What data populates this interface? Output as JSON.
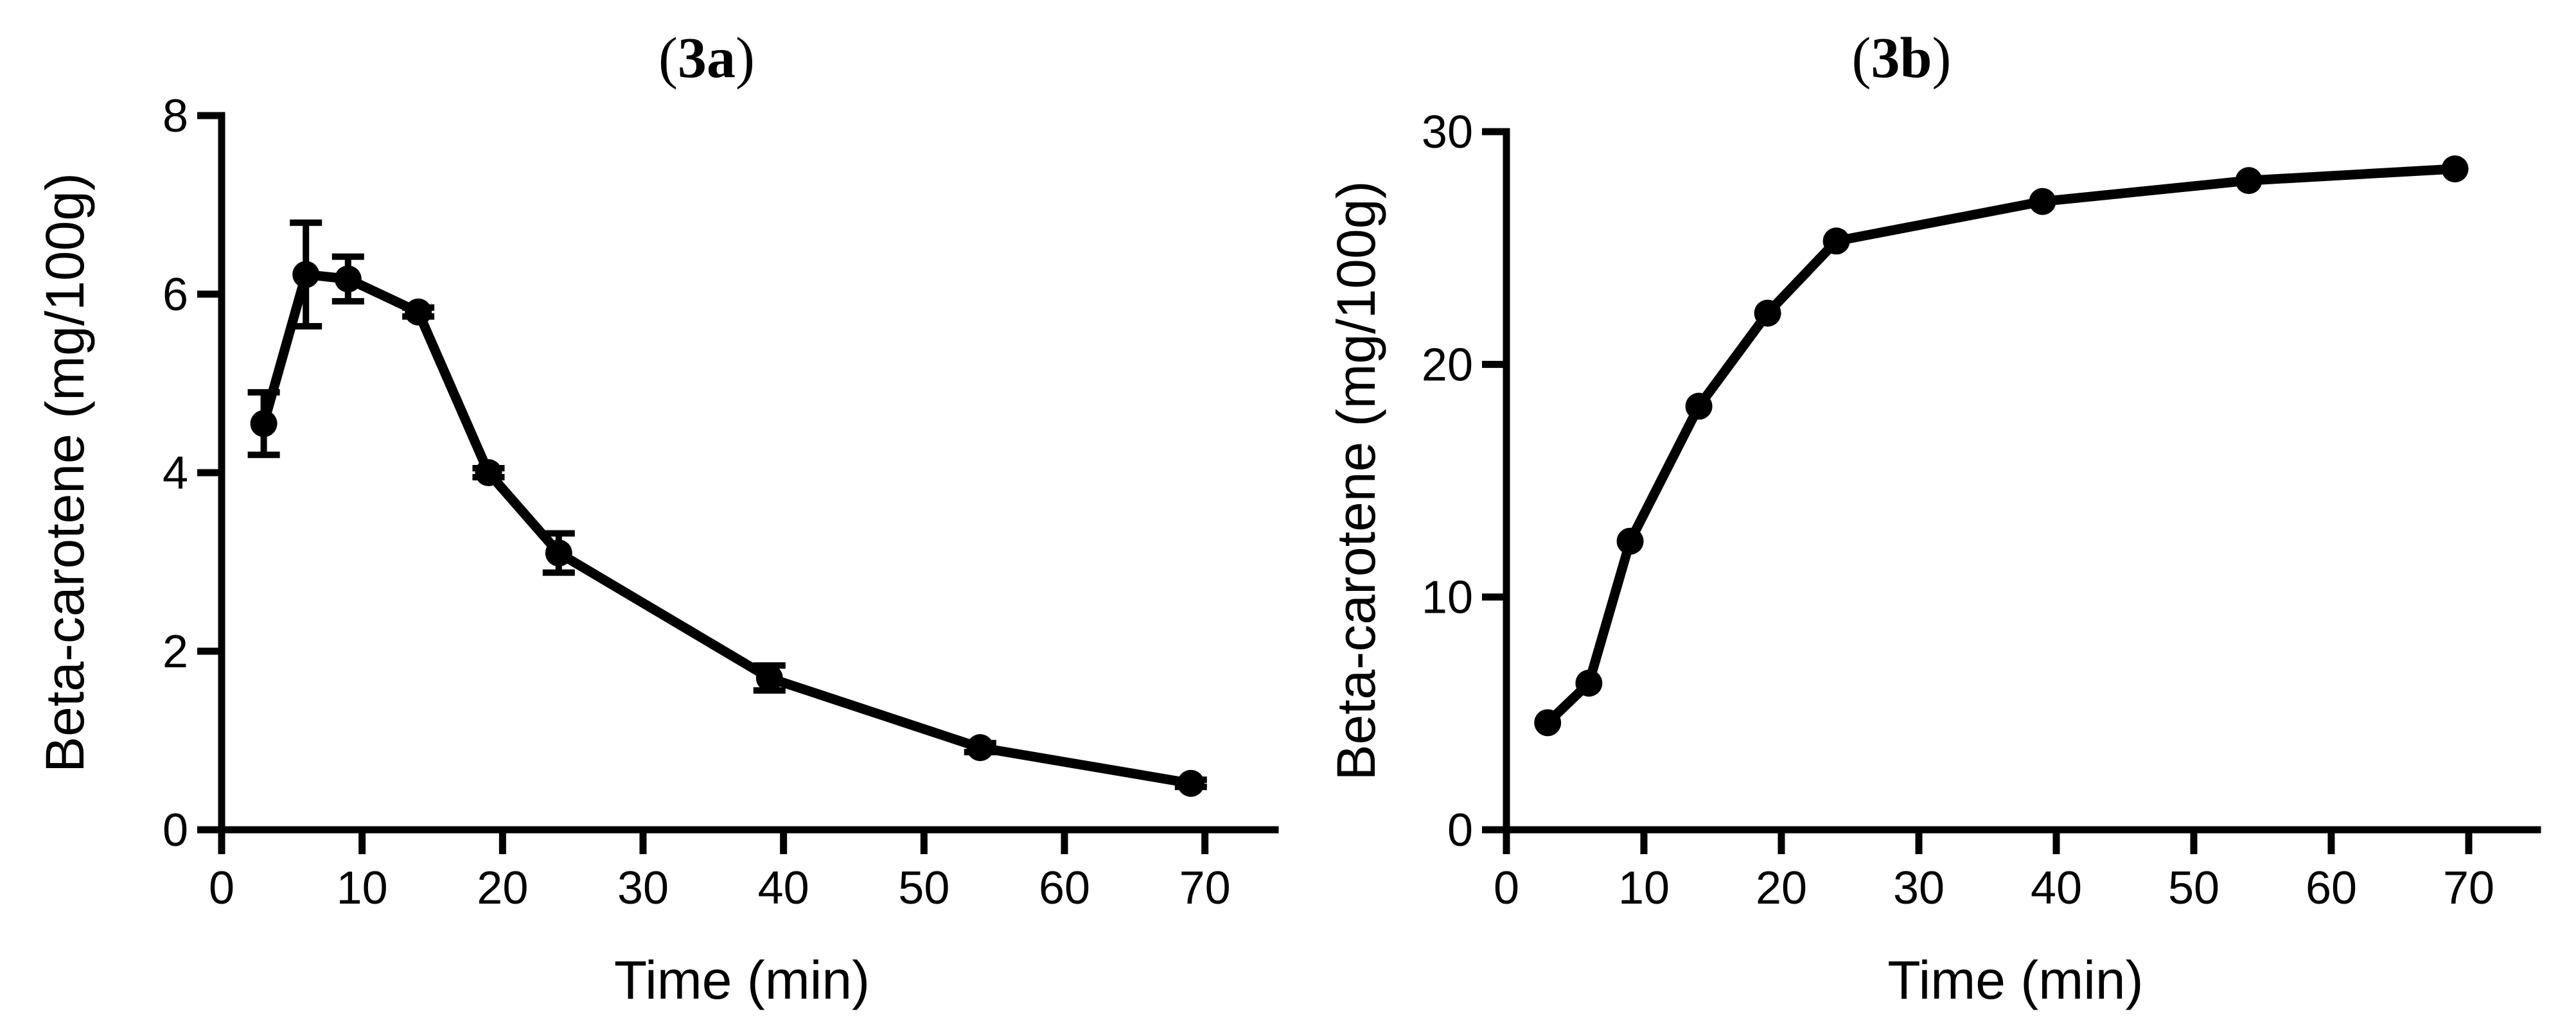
{
  "chart_data": [
    {
      "type": "line",
      "title": "3a",
      "xlabel": "Time (min)",
      "ylabel": "Beta-carotene (mg/100g)",
      "xlim": [
        0,
        75
      ],
      "ylim": [
        0,
        8
      ],
      "xticks": [
        0,
        10,
        20,
        30,
        40,
        50,
        60,
        70
      ],
      "yticks": [
        0,
        2,
        4,
        6,
        8
      ],
      "grid": false,
      "series": [
        {
          "name": "Beta-carotene",
          "x": [
            3,
            6,
            9,
            14,
            19,
            24,
            39,
            54,
            69
          ],
          "values": [
            4.55,
            6.22,
            6.17,
            5.8,
            4.0,
            3.1,
            1.7,
            0.92,
            0.52
          ],
          "error": [
            0.35,
            0.58,
            0.25,
            0.05,
            0.05,
            0.22,
            0.14,
            0.05,
            0.04
          ]
        }
      ]
    },
    {
      "type": "line",
      "title": "3b",
      "xlabel": "Time (min)",
      "ylabel": "Beta-carotene (mg/100g)",
      "xlim": [
        0,
        75
      ],
      "ylim": [
        0,
        30
      ],
      "xticks": [
        0,
        10,
        20,
        30,
        40,
        50,
        60,
        70
      ],
      "yticks": [
        0,
        10,
        20,
        30
      ],
      "grid": false,
      "series": [
        {
          "name": "Beta-carotene",
          "x": [
            3,
            6,
            9,
            14,
            19,
            24,
            39,
            54,
            69
          ],
          "values": [
            4.6,
            6.3,
            12.4,
            18.2,
            22.2,
            25.3,
            27.0,
            27.9,
            28.4
          ],
          "error": [
            0,
            0,
            0,
            0,
            0,
            0,
            0,
            0,
            0
          ]
        }
      ]
    }
  ]
}
